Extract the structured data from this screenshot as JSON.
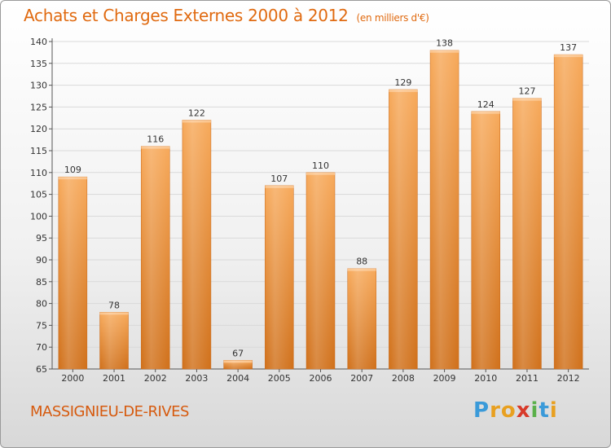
{
  "title": "Achats et Charges Externes 2000 à 2012",
  "unit_note": "(en milliers d'€)",
  "location": "MASSIGNIEU-DE-RIVES",
  "brand": {
    "letters": [
      "P",
      "r",
      "o",
      "x",
      "i",
      "t",
      "i"
    ],
    "colors": [
      "#3a9ad9",
      "#e8a020",
      "#e8a020",
      "#d83a2a",
      "#5ab04a",
      "#3a9ad9",
      "#e8a020"
    ]
  },
  "colors": {
    "title": "#e06a10",
    "bar_top": "#f7a95a",
    "bar_bottom": "#d0701a",
    "grid": "#d9d9d9",
    "axis": "#555555"
  },
  "chart_data": {
    "type": "bar",
    "title": "Achats et Charges Externes 2000 à 2012",
    "xlabel": "",
    "ylabel": "",
    "categories": [
      "2000",
      "2001",
      "2002",
      "2003",
      "2004",
      "2005",
      "2006",
      "2007",
      "2008",
      "2009",
      "2010",
      "2011",
      "2012"
    ],
    "values": [
      109,
      78,
      116,
      122,
      67,
      107,
      110,
      88,
      129,
      138,
      124,
      127,
      137
    ],
    "ylim": [
      65,
      140
    ],
    "yticks": [
      65,
      70,
      75,
      80,
      85,
      90,
      95,
      100,
      105,
      110,
      115,
      120,
      125,
      130,
      135,
      140
    ],
    "grid": true
  }
}
